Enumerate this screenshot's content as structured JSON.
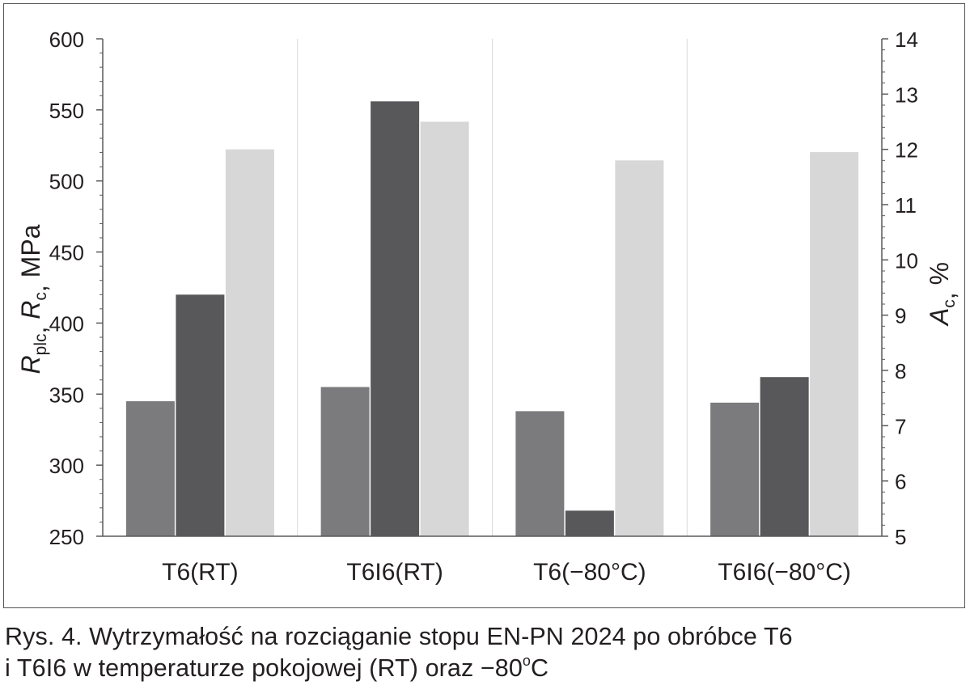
{
  "chart_data": {
    "type": "bar",
    "categories": [
      "T6(RT)",
      "T6I6(RT)",
      "T6(−80°C)",
      "T6I6(−80°C)"
    ],
    "series": [
      {
        "axis": "left",
        "color": "#7b7b7d",
        "values": [
          345,
          355,
          338,
          344
        ]
      },
      {
        "axis": "left",
        "color": "#58585a",
        "values": [
          420,
          556,
          268,
          362
        ]
      },
      {
        "axis": "right",
        "color": "#d7d7d8",
        "values": [
          12.0,
          12.5,
          11.8,
          11.95
        ]
      }
    ],
    "y_left": {
      "label_parts": [
        [
          "R",
          "plc"
        ],
        [
          "R",
          "c"
        ]
      ],
      "label_unit": "MPa",
      "ylim": [
        250,
        600
      ],
      "ticks": [
        "250",
        "300",
        "350",
        "400",
        "450",
        "500",
        "550",
        "600"
      ]
    },
    "y_right": {
      "label_parts": [
        [
          "A",
          "c"
        ]
      ],
      "label_unit": "%",
      "ylim": [
        5,
        14
      ],
      "ticks": [
        "5",
        "6",
        "7",
        "8",
        "9",
        "10",
        "11",
        "12",
        "13",
        "14"
      ]
    },
    "grid": "vertical category separators",
    "legend": "none"
  },
  "caption": {
    "line1": "Rys. 4. Wytrzymałość na rozciąganie stopu EN-PN 2024 po obróbce T6",
    "line2_prefix": "i T6I6 w temperaturze pokojowej (RT) oraz −80",
    "line2_sup": "o",
    "line2_suffix": "C"
  }
}
